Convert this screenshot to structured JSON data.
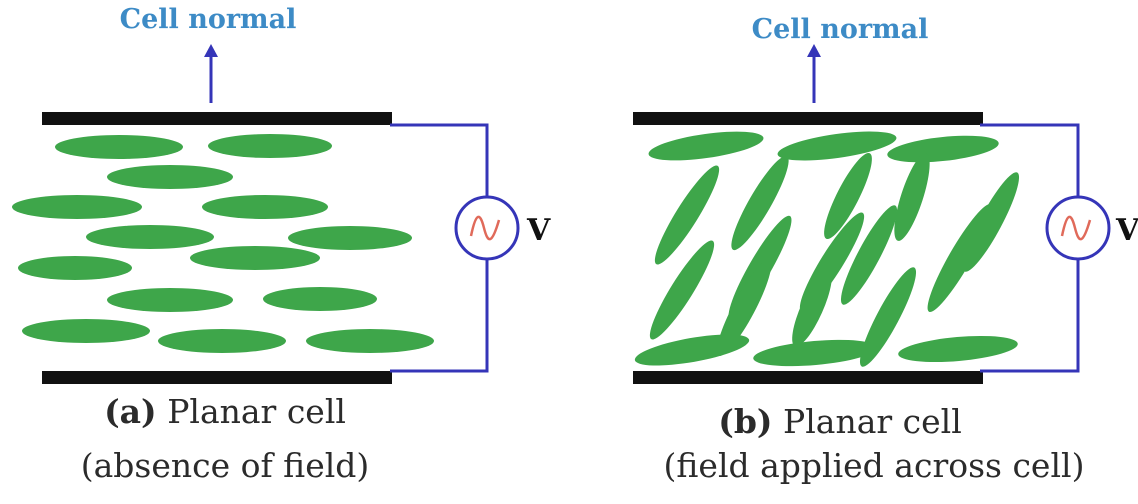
{
  "colors": {
    "molecule": "#3ea64a",
    "electrode": "#111111",
    "wire": "#3535b8",
    "normal_label": "#3d8bc6",
    "source_wave": "#e06a5a"
  },
  "icons": {
    "arrow": "up-arrow-icon",
    "source": "ac-voltage-source-icon"
  },
  "panel_a": {
    "normal_label": "Cell normal",
    "voltage_label": "V",
    "caption_letter": "(a)",
    "caption_line1": "Planar cell",
    "caption_line2": "(absence of field)",
    "molecule_orientation": "parallel to electrodes"
  },
  "panel_b": {
    "normal_label": "Cell normal",
    "voltage_label": "V",
    "caption_letter": "(b)",
    "caption_line1": "Planar cell",
    "caption_line2": "(field applied across cell)",
    "molecule_orientation": "tilted toward cell normal"
  }
}
